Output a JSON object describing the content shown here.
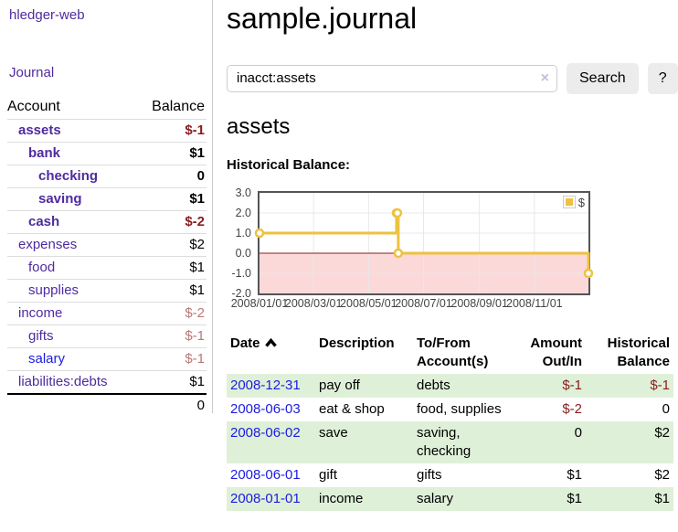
{
  "brand": "hledger-web",
  "nav": {
    "journal": "Journal"
  },
  "sidebar": {
    "headers": {
      "account": "Account",
      "balance": "Balance"
    },
    "rows": [
      {
        "account": "assets",
        "balance": "$-1"
      },
      {
        "account": "bank",
        "balance": "$1"
      },
      {
        "account": "checking",
        "balance": "0"
      },
      {
        "account": "saving",
        "balance": "$1"
      },
      {
        "account": "cash",
        "balance": "$-2"
      },
      {
        "account": "expenses",
        "balance": "$2"
      },
      {
        "account": "food",
        "balance": "$1"
      },
      {
        "account": "supplies",
        "balance": "$1"
      },
      {
        "account": "income",
        "balance": "$-2"
      },
      {
        "account": "gifts",
        "balance": "$-1"
      },
      {
        "account": "salary",
        "balance": "$-1"
      },
      {
        "account": "liabilities:debts",
        "balance": "$1"
      }
    ],
    "total": "0"
  },
  "main": {
    "title": "sample.journal",
    "search": {
      "value": "inacct:assets",
      "clear_label": "×",
      "button_label": "Search",
      "help_label": "?"
    },
    "account_heading": "assets",
    "chart_title": "Historical Balance:"
  },
  "chart_data": {
    "type": "line",
    "title": "Historical Balance",
    "steps": true,
    "xlim": [
      "2008-01-01",
      "2008-12-31"
    ],
    "ylim": [
      -2.0,
      3.0
    ],
    "grid": true,
    "legend": {
      "label": "$",
      "position": "top-right"
    },
    "series": [
      {
        "name": "$",
        "color": "#edc240",
        "points": [
          {
            "x": "2008-01-01",
            "y": 1
          },
          {
            "x": "2008-06-01",
            "y": 2
          },
          {
            "x": "2008-06-02",
            "y": 2
          },
          {
            "x": "2008-06-03",
            "y": 0
          },
          {
            "x": "2008-12-31",
            "y": -1
          }
        ]
      }
    ],
    "yticks": [
      {
        "label": "3.0",
        "value": 3
      },
      {
        "label": "2.0",
        "value": 2
      },
      {
        "label": "1.0",
        "value": 1
      },
      {
        "label": "0.0",
        "value": 0
      },
      {
        "label": "-1.0",
        "value": -1
      },
      {
        "label": "-2.0",
        "value": -2
      }
    ],
    "xticks": [
      {
        "label": "2008/01/01",
        "date": "2008-01-01"
      },
      {
        "label": "2008/03/01",
        "date": "2008-03-01"
      },
      {
        "label": "2008/05/01",
        "date": "2008-05-01"
      },
      {
        "label": "2008/07/01",
        "date": "2008-07-01"
      },
      {
        "label": "2008/09/01",
        "date": "2008-09-01"
      },
      {
        "label": "2008/11/01",
        "date": "2008-11-01"
      }
    ],
    "colors": {
      "grid": "#e8e8e8",
      "border": "#545454",
      "zero_line": "#8f1d1d",
      "negative_region": "#fbd9d9",
      "marker_fill": "#ffffff"
    }
  },
  "register": {
    "headers": {
      "date": "Date",
      "description": "Description",
      "accounts": "To/From Account(s)",
      "amount": "Amount Out/In",
      "balance": "Historical Balance"
    },
    "rows": [
      {
        "date": "2008-12-31",
        "description": "pay off",
        "accounts": "debts",
        "amount": "$-1",
        "balance": "$-1"
      },
      {
        "date": "2008-06-03",
        "description": "eat & shop",
        "accounts": "food, supplies",
        "amount": "$-2",
        "balance": "0"
      },
      {
        "date": "2008-06-02",
        "description": "save",
        "accounts": "saving, checking",
        "amount": "0",
        "balance": "$2"
      },
      {
        "date": "2008-06-01",
        "description": "gift",
        "accounts": "gifts",
        "amount": "$1",
        "balance": "$2"
      },
      {
        "date": "2008-01-01",
        "description": "income",
        "accounts": "salary",
        "amount": "$1",
        "balance": "$1"
      }
    ]
  },
  "colors": {
    "link_purple": "#4f2b9e",
    "link_blue": "#1c1ce0",
    "negative_dark": "#8b1c1c",
    "negative_light": "#b87878",
    "row_green": "#dff0d8",
    "button_gray": "#ececec"
  }
}
